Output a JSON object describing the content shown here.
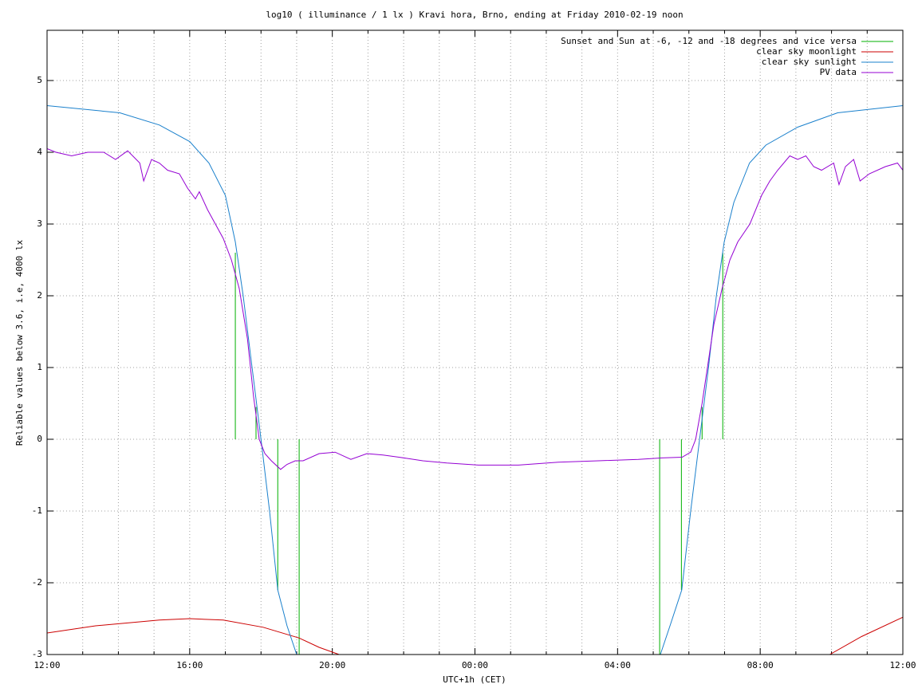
{
  "chart_data": {
    "type": "line",
    "title": "log10 ( illuminance / 1 lx ) Kravi hora, Brno, ending at Friday 2010-02-19 noon",
    "xlabel": "UTC+1h (CET)",
    "ylabel": "Reliable values below 3.6, i.e, 4000 lx",
    "xlim": [
      0,
      24
    ],
    "ylim": [
      -3,
      5.7
    ],
    "xticks": [
      {
        "value": 0,
        "label": "12:00"
      },
      {
        "value": 4,
        "label": "16:00"
      },
      {
        "value": 8,
        "label": "20:00"
      },
      {
        "value": 12,
        "label": "00:00"
      },
      {
        "value": 16,
        "label": "04:00"
      },
      {
        "value": 20,
        "label": "08:00"
      },
      {
        "value": 24,
        "label": "12:00"
      }
    ],
    "xminorticks": [
      1,
      2,
      3,
      5,
      6,
      7,
      9,
      10,
      11,
      13,
      14,
      15,
      17,
      18,
      19,
      21,
      22,
      23
    ],
    "yticks": [
      -3,
      -2,
      -1,
      0,
      1,
      2,
      3,
      4,
      5
    ],
    "grid": true,
    "legend": "top right",
    "series": [
      {
        "name": "Sunset and Sun at -6, -12 and -18 degrees and vice versa",
        "color": "#00b000",
        "style": "impulses",
        "x": [
          5.28,
          5.86,
          6.47,
          7.07,
          17.18,
          17.79,
          18.37,
          18.95
        ],
        "values": [
          2.6,
          0.45,
          -2.1,
          -3.0,
          -3.0,
          -2.1,
          0.45,
          2.6
        ]
      },
      {
        "name": "clear sky moonlight",
        "color": "#cc0000",
        "style": "lines",
        "x": [
          0,
          1.36,
          3.15,
          4.0,
          4.94,
          6.06,
          7.07,
          7.63,
          8.19,
          12,
          21.95,
          22.84,
          24
        ],
        "values": [
          -2.7,
          -2.6,
          -2.52,
          -2.5,
          -2.52,
          -2.62,
          -2.77,
          -2.9,
          -3.0,
          null,
          -3.0,
          -2.75,
          -2.48
        ]
      },
      {
        "name": "clear sky sunlight",
        "color": "#1a80cc",
        "style": "lines",
        "x": [
          0,
          2.04,
          3.15,
          4.0,
          4.54,
          5.0,
          5.28,
          5.5,
          5.75,
          6.0,
          6.24,
          6.47,
          6.73,
          7.0,
          12,
          17.2,
          17.47,
          17.8,
          18.05,
          18.3,
          18.55,
          18.77,
          18.99,
          19.26,
          19.7,
          20.16,
          21.05,
          22.17,
          24
        ],
        "values": [
          4.65,
          4.55,
          4.38,
          4.15,
          3.85,
          3.4,
          2.75,
          2.0,
          1.0,
          0.0,
          -1.0,
          -2.1,
          -2.6,
          -3.0,
          null,
          -3.0,
          -2.6,
          -2.1,
          -1.0,
          0.0,
          1.0,
          2.0,
          2.75,
          3.3,
          3.85,
          4.1,
          4.35,
          4.55,
          4.65
        ]
      },
      {
        "name": "PV data",
        "color": "#9400d3",
        "style": "lines",
        "x": [
          0,
          0.25,
          0.69,
          1.14,
          1.59,
          1.92,
          2.26,
          2.6,
          2.71,
          2.93,
          3.15,
          3.38,
          3.71,
          3.94,
          4.16,
          4.27,
          4.5,
          4.72,
          4.94,
          5.17,
          5.39,
          5.62,
          5.79,
          5.95,
          6.11,
          6.29,
          6.55,
          6.73,
          6.96,
          7.18,
          7.63,
          8.08,
          8.52,
          8.97,
          9.42,
          9.87,
          10.54,
          11.21,
          12.1,
          13.22,
          14.34,
          15.46,
          16.58,
          17.25,
          17.81,
          18.05,
          18.19,
          18.37,
          18.55,
          18.7,
          18.93,
          19.15,
          19.37,
          19.71,
          20.04,
          20.27,
          20.49,
          20.83,
          21.05,
          21.28,
          21.5,
          21.72,
          22.06,
          22.21,
          22.39,
          22.62,
          22.8,
          23.06,
          23.51,
          23.85,
          24
        ],
        "values": [
          4.05,
          4.0,
          3.95,
          4.0,
          4.0,
          3.9,
          4.02,
          3.85,
          3.6,
          3.9,
          3.85,
          3.75,
          3.7,
          3.5,
          3.35,
          3.45,
          3.2,
          3.0,
          2.8,
          2.5,
          2.1,
          1.4,
          0.6,
          0.0,
          -0.2,
          -0.3,
          -0.42,
          -0.35,
          -0.3,
          -0.3,
          -0.2,
          -0.18,
          -0.28,
          -0.2,
          -0.22,
          -0.25,
          -0.3,
          -0.33,
          -0.36,
          -0.36,
          -0.32,
          -0.3,
          -0.28,
          -0.26,
          -0.25,
          -0.18,
          0.0,
          0.5,
          1.1,
          1.6,
          2.1,
          2.5,
          2.75,
          3.0,
          3.4,
          3.6,
          3.75,
          3.95,
          3.9,
          3.95,
          3.8,
          3.75,
          3.85,
          3.55,
          3.8,
          3.9,
          3.6,
          3.7,
          3.8,
          3.85,
          3.75
        ]
      }
    ]
  }
}
